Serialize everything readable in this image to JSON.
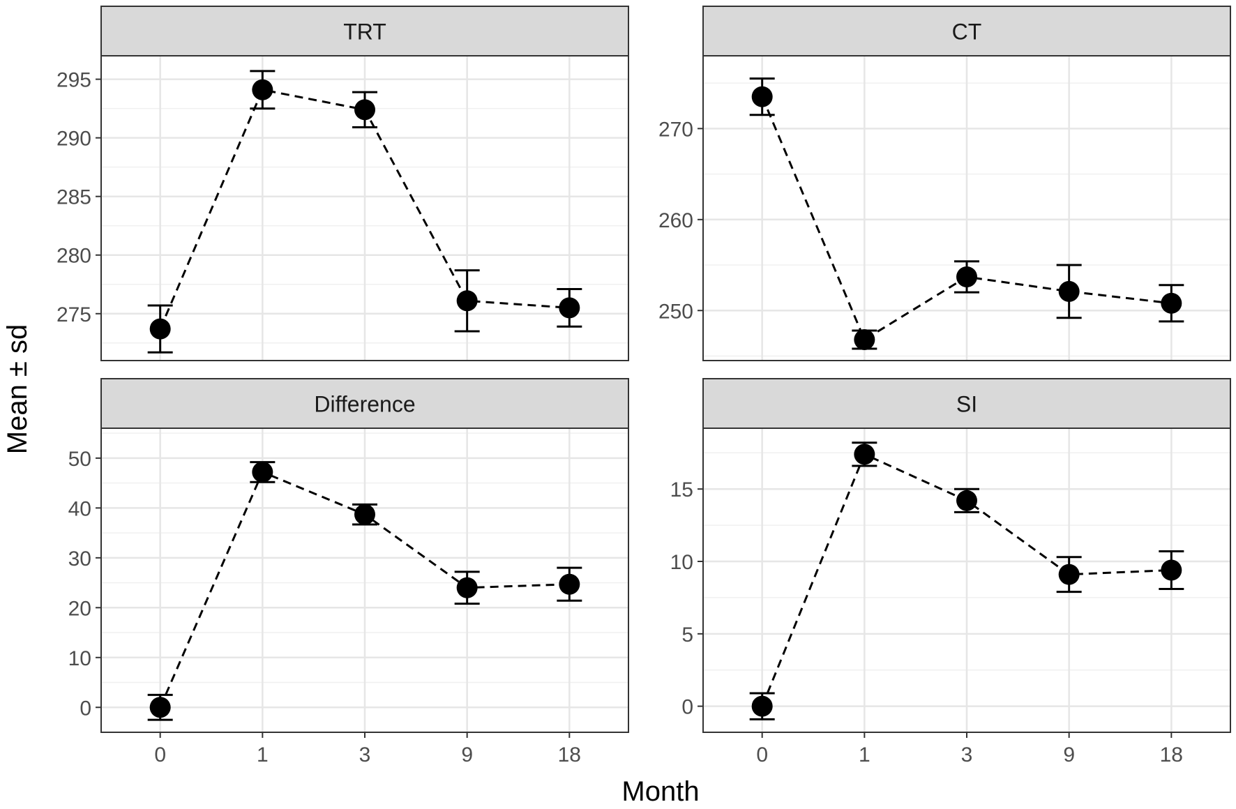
{
  "figure": {
    "xlabel": "Month",
    "ylabel": "Mean ± sd"
  },
  "chart_data": [
    {
      "type": "line",
      "title": "TRT",
      "categories": [
        "0",
        "1",
        "3",
        "9",
        "18"
      ],
      "series": [
        {
          "name": "TRT",
          "mean": [
            273.7,
            294.1,
            292.4,
            276.1,
            275.5
          ],
          "sd": [
            2.0,
            1.6,
            1.5,
            2.6,
            1.6
          ]
        }
      ],
      "ylim": [
        271,
        297
      ],
      "yticks": [
        275,
        280,
        285,
        290,
        295
      ],
      "ytick_labels": [
        "275",
        "280",
        "285",
        "290",
        "295"
      ],
      "grid": true
    },
    {
      "type": "line",
      "title": "CT",
      "categories": [
        "0",
        "1",
        "3",
        "9",
        "18"
      ],
      "series": [
        {
          "name": "CT",
          "mean": [
            273.5,
            246.8,
            253.7,
            252.1,
            250.8
          ],
          "sd": [
            2.0,
            1.0,
            1.7,
            2.9,
            2.0
          ]
        }
      ],
      "ylim": [
        244.5,
        278
      ],
      "yticks": [
        250,
        260,
        270
      ],
      "ytick_labels": [
        "250",
        "260",
        "270"
      ],
      "grid": true
    },
    {
      "type": "line",
      "title": "Difference",
      "categories": [
        "0",
        "1",
        "3",
        "9",
        "18"
      ],
      "series": [
        {
          "name": "Difference",
          "mean": [
            0.0,
            47.2,
            38.7,
            24.0,
            24.7
          ],
          "sd": [
            2.5,
            2.0,
            2.0,
            3.2,
            3.3
          ]
        }
      ],
      "ylim": [
        -5,
        56
      ],
      "yticks": [
        0,
        10,
        20,
        30,
        40,
        50
      ],
      "ytick_labels": [
        "0",
        "10",
        "20",
        "30",
        "40",
        "50"
      ],
      "grid": true
    },
    {
      "type": "line",
      "title": "SI",
      "categories": [
        "0",
        "1",
        "3",
        "9",
        "18"
      ],
      "series": [
        {
          "name": "SI",
          "mean": [
            0.0,
            17.4,
            14.2,
            9.1,
            9.4
          ],
          "sd": [
            0.9,
            0.8,
            0.8,
            1.2,
            1.3
          ]
        }
      ],
      "ylim": [
        -1.8,
        19.2
      ],
      "yticks": [
        0,
        5,
        10,
        15
      ],
      "ytick_labels": [
        "0",
        "5",
        "10",
        "15"
      ],
      "grid": true
    }
  ]
}
